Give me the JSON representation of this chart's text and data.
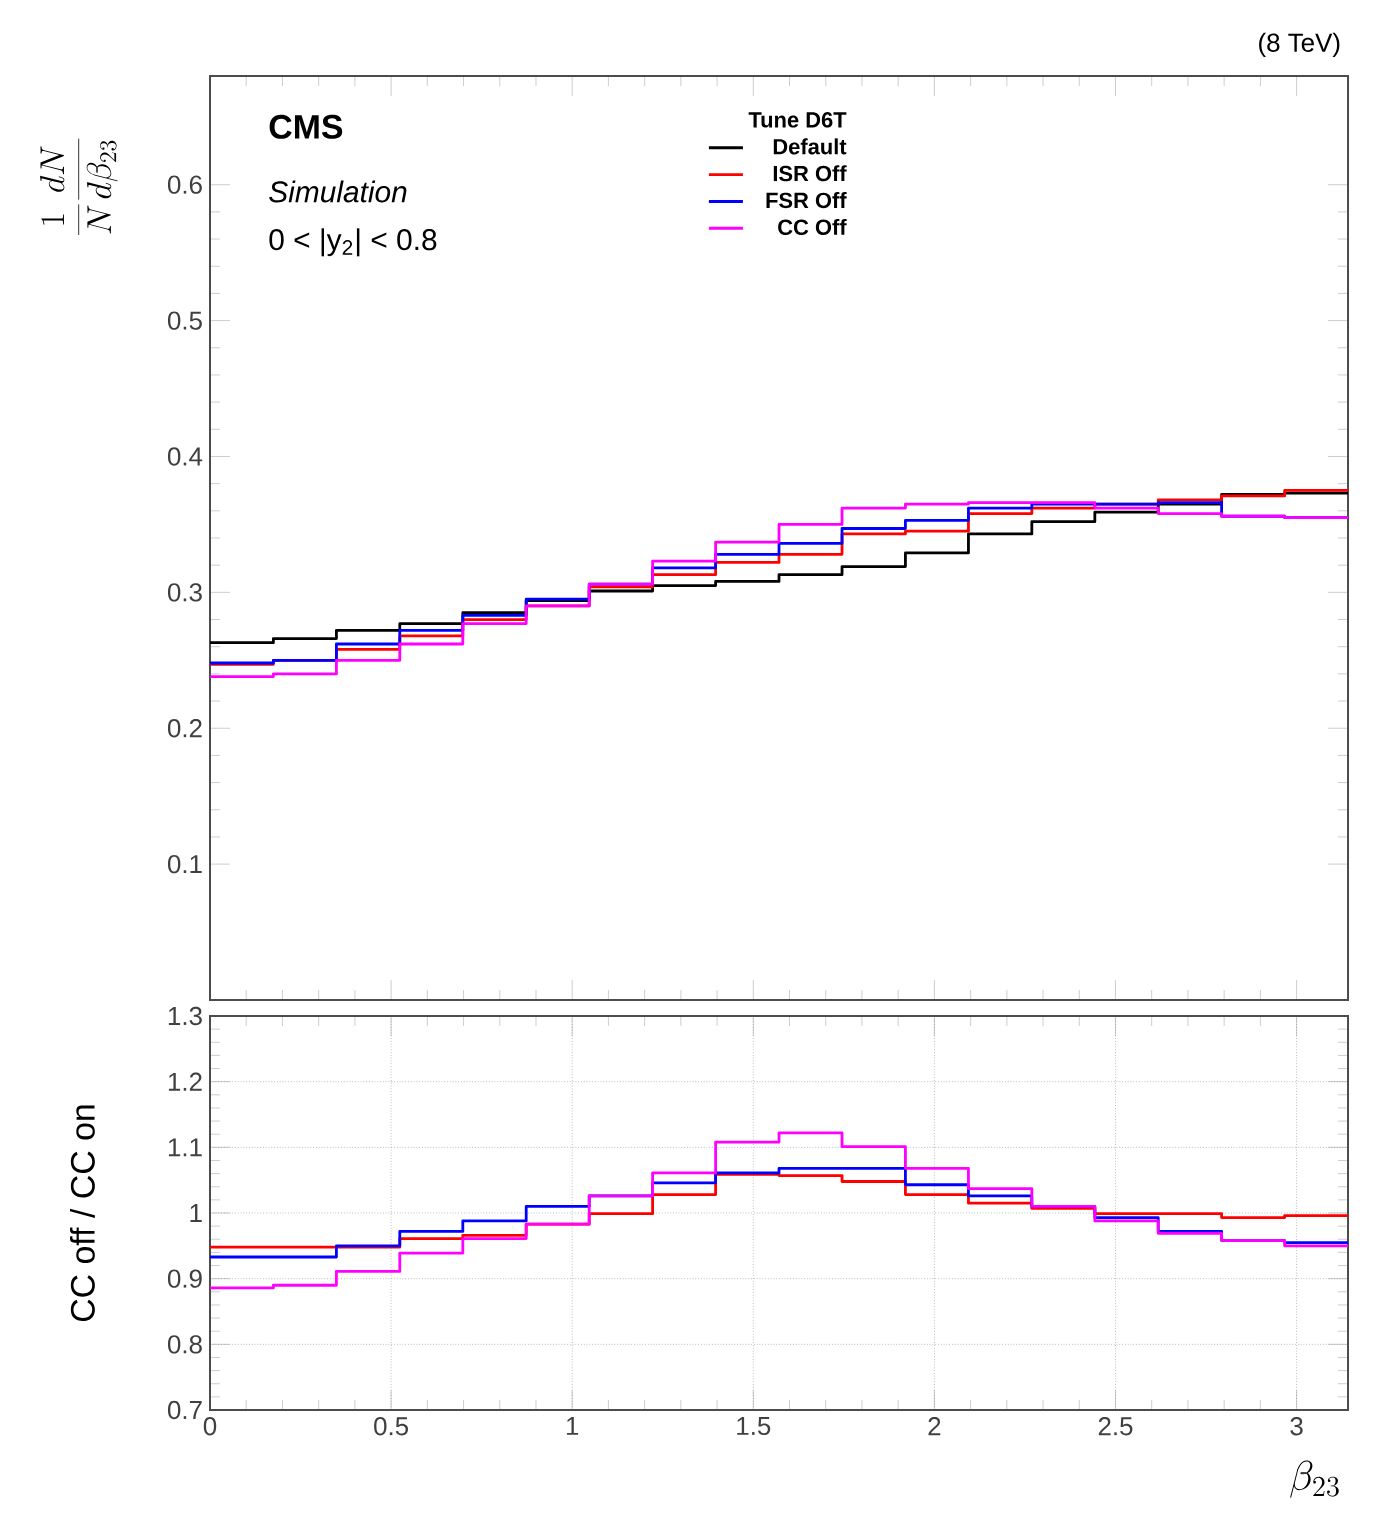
{
  "chart_data": [
    {
      "type": "histogram",
      "title": "(8 TeV)",
      "ylabel": "\\frac{1}{N}\\frac{dN}{d\\beta_{23}}",
      "legend_title": "Tune D6T",
      "legend": "top",
      "annotations": [
        "CMS",
        "Simulation",
        "0 < |y$_{2}$| < 0.8"
      ],
      "bins": [
        0,
        0.175,
        0.349,
        0.524,
        0.698,
        0.873,
        1.047,
        1.222,
        1.396,
        1.571,
        1.745,
        1.92,
        2.094,
        2.269,
        2.443,
        2.618,
        2.793,
        2.967,
        3.142
      ],
      "xlim": [
        0,
        3.142
      ],
      "xticks": [
        0,
        0.5,
        1,
        1.5,
        2,
        2.5,
        3
      ],
      "ylim": [
        0,
        0.68
      ],
      "yticks": [
        0.1,
        0.2,
        0.3,
        0.4,
        0.5,
        0.6
      ],
      "tick_labels": "y",
      "series": [
        {
          "name": "Default",
          "color": "#000000",
          "values": [
            0.263,
            0.266,
            0.272,
            0.277,
            0.285,
            0.294,
            0.301,
            0.305,
            0.308,
            0.313,
            0.319,
            0.329,
            0.343,
            0.352,
            0.359,
            0.365,
            0.372,
            0.373
          ]
        },
        {
          "name": "ISR Off",
          "color": "#ff0000",
          "values": [
            0.247,
            0.25,
            0.258,
            0.268,
            0.28,
            0.29,
            0.304,
            0.313,
            0.322,
            0.328,
            0.343,
            0.345,
            0.358,
            0.362,
            0.365,
            0.368,
            0.371,
            0.375
          ]
        },
        {
          "name": "FSR Off",
          "color": "#0000ff",
          "values": [
            0.248,
            0.25,
            0.262,
            0.272,
            0.283,
            0.295,
            0.306,
            0.318,
            0.328,
            0.336,
            0.347,
            0.353,
            0.362,
            0.365,
            0.365,
            0.366,
            0.356,
            0.355
          ]
        },
        {
          "name": "CC Off",
          "color": "#ff00ff",
          "values": [
            0.238,
            0.24,
            0.25,
            0.262,
            0.277,
            0.29,
            0.306,
            0.323,
            0.337,
            0.35,
            0.362,
            0.365,
            0.366,
            0.366,
            0.362,
            0.358,
            0.356,
            0.355
          ]
        }
      ]
    },
    {
      "type": "histogram",
      "xlabel": "\\beta_{23}",
      "ylabel": "CC off / CC on",
      "grid": true,
      "bins": [
        0,
        0.175,
        0.349,
        0.524,
        0.698,
        0.873,
        1.047,
        1.222,
        1.396,
        1.571,
        1.745,
        1.92,
        2.094,
        2.269,
        2.443,
        2.618,
        2.793,
        2.967,
        3.142
      ],
      "xlim": [
        0,
        3.142
      ],
      "xticks": [
        0,
        0.5,
        1,
        1.5,
        2,
        2.5,
        3
      ],
      "ylim": [
        0.7,
        1.3
      ],
      "yticks": [
        0.7,
        0.8,
        0.9,
        1,
        1.1,
        1.2,
        1.3
      ],
      "series": [
        {
          "color": "#ff0000",
          "values": [
            0.948,
            0.948,
            0.948,
            0.961,
            0.966,
            0.983,
            0.999,
            1.028,
            1.059,
            1.057,
            1.048,
            1.028,
            1.015,
            1.007,
            0.999,
            0.999,
            0.993,
            0.996
          ]
        },
        {
          "color": "#0000ff",
          "values": [
            0.933,
            0.933,
            0.95,
            0.972,
            0.988,
            1.01,
            1.026,
            1.046,
            1.061,
            1.068,
            1.068,
            1.043,
            1.026,
            1.01,
            0.993,
            0.972,
            0.958,
            0.955
          ]
        },
        {
          "color": "#ff00ff",
          "values": [
            0.886,
            0.89,
            0.911,
            0.939,
            0.961,
            0.983,
            1.026,
            1.061,
            1.108,
            1.122,
            1.101,
            1.068,
            1.037,
            1.01,
            0.988,
            0.969,
            0.958,
            0.95
          ]
        }
      ]
    }
  ]
}
